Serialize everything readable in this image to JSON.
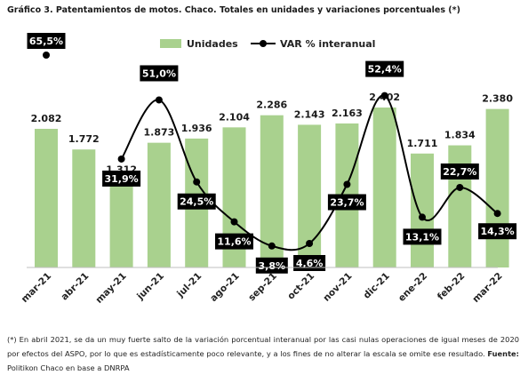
{
  "title": "Gráfico 3. Patentamientos de motos. Chaco. Totales en unidades y variaciones porcentuales (*)",
  "chart_data": {
    "type": "bar",
    "categories": [
      "mar-21",
      "abr-21",
      "may-21",
      "jun-21",
      "jul-21",
      "ago-21",
      "sep-21",
      "oct-21",
      "nov-21",
      "dic-21",
      "ene-22",
      "feb-22",
      "mar-22"
    ],
    "series": [
      {
        "name": "Unidades",
        "type": "bar",
        "color": "#a9d18e",
        "values": [
          2082,
          1772,
          1312,
          1873,
          1936,
          2104,
          2286,
          2143,
          2163,
          2402,
          1711,
          1834,
          2380
        ],
        "labels": [
          "2.082",
          "1.772",
          "1.312",
          "1.873",
          "1.936",
          "2.104",
          "2.286",
          "2.143",
          "2.163",
          "2.402",
          "1.711",
          "1.834",
          "2.380"
        ]
      },
      {
        "name": "VAR % interanual",
        "type": "line",
        "color": "#000000",
        "values": [
          65.5,
          null,
          31.9,
          51.0,
          24.5,
          11.6,
          3.8,
          4.6,
          23.7,
          52.4,
          13.1,
          22.7,
          14.3
        ],
        "labels": [
          "65,5%",
          "",
          "31,9%",
          "51,0%",
          "24,5%",
          "11,6%",
          "3,8%",
          "4,6%",
          "23,7%",
          "52,4%",
          "13,1%",
          "22,7%",
          "14,3%"
        ]
      }
    ],
    "legend_position": "top-right",
    "grid": false
  },
  "note": {
    "text": "(*) En abril 2021, se da un muy fuerte salto de la variación porcentual interanual por las casi nulas operaciones de igual meses de 2020 por efectos del ASPO, por lo que es estadísticamente poco relevante, y a los fines de no alterar la escala se omite ese resultado. ",
    "source_label": "Fuente:",
    "source_text": " Politikon Chaco en base a DNRPA"
  }
}
